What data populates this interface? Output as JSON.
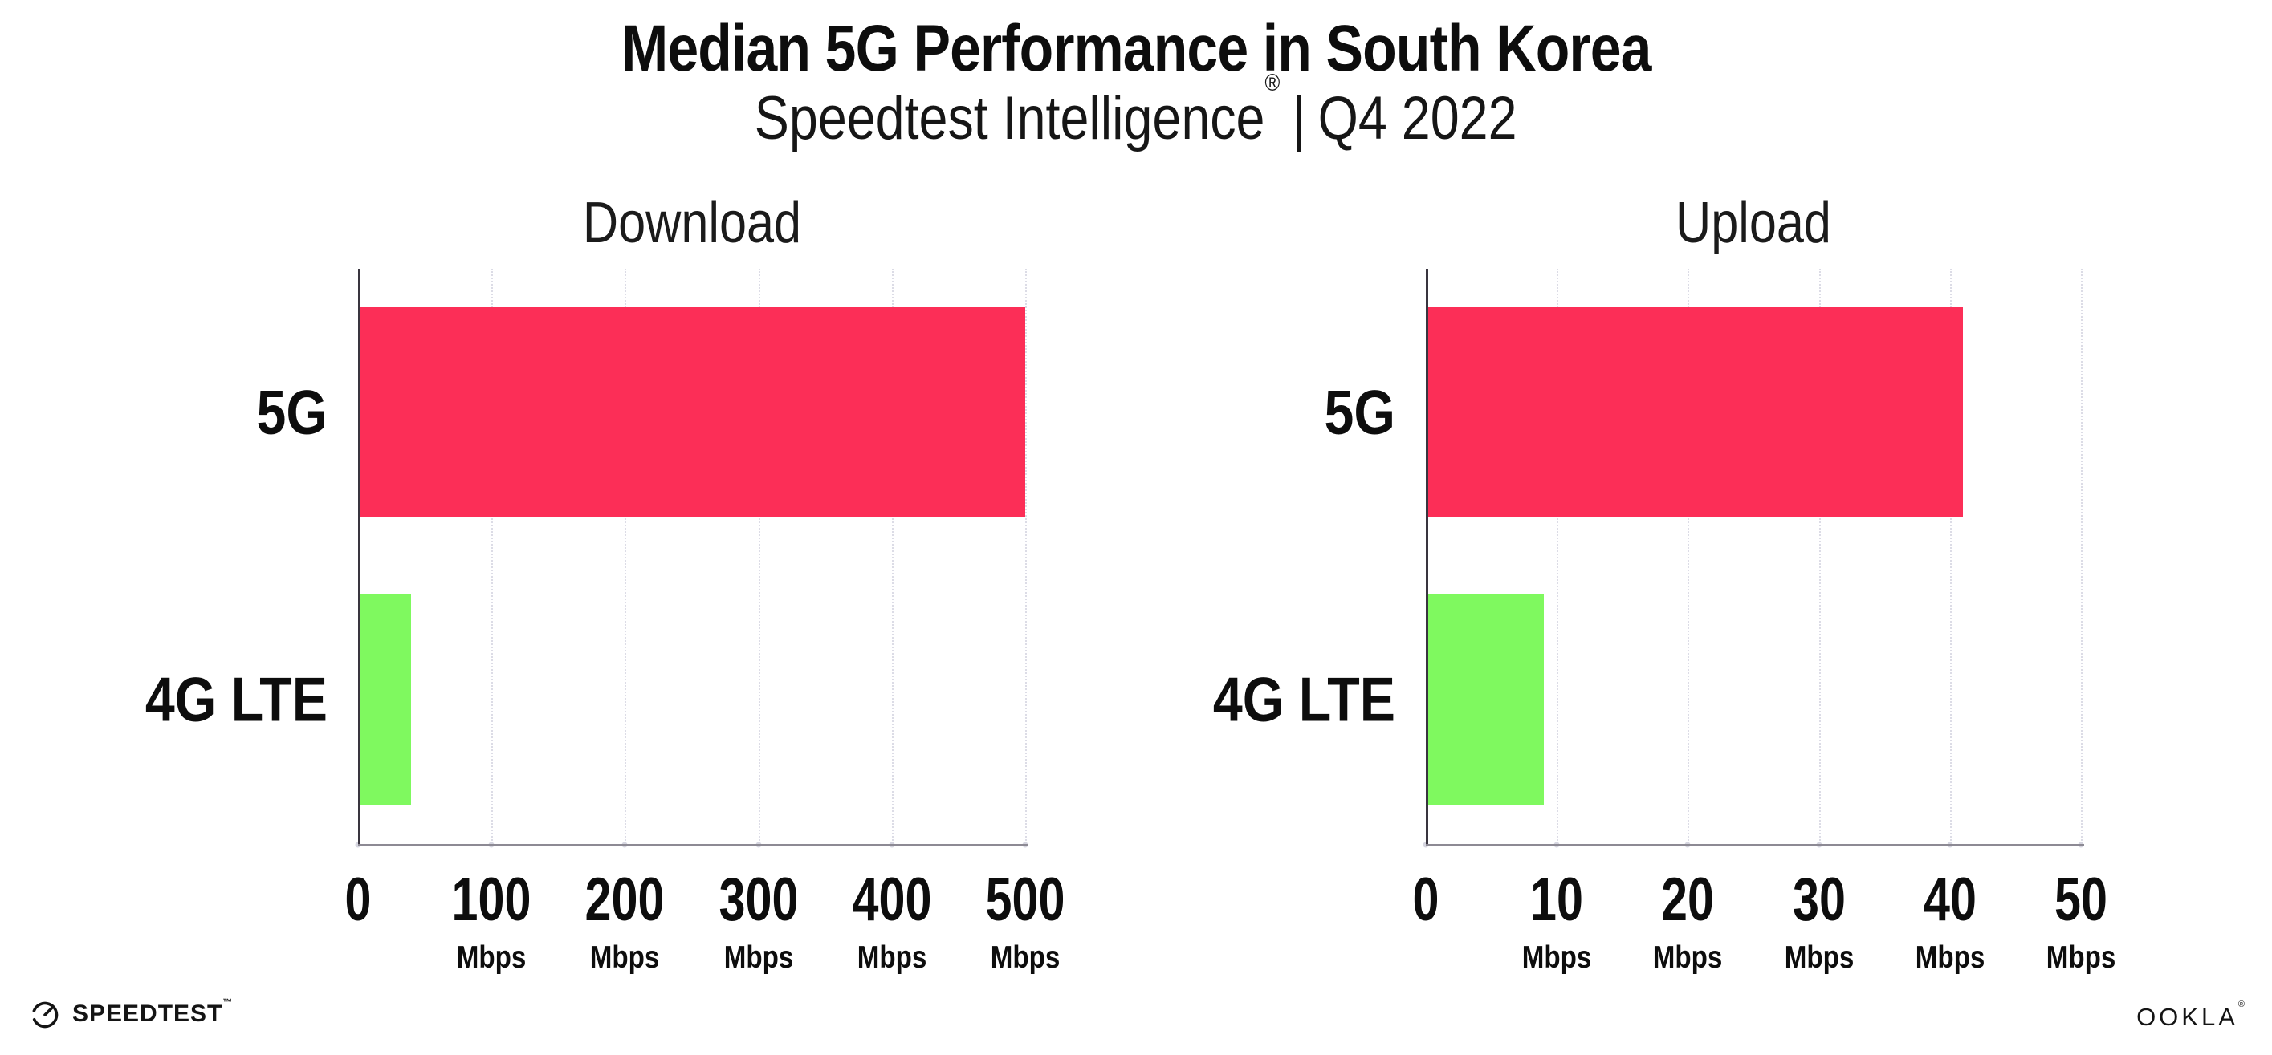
{
  "header": {
    "title": "Median 5G Performance in South Korea",
    "subtitle_brand": "Speedtest Intelligence",
    "subtitle_registered": "®",
    "subtitle_separator": "|",
    "subtitle_period": "Q4 2022"
  },
  "footer": {
    "speedtest_logo_text": "SPEEDTEST",
    "speedtest_trademark": "™",
    "ookla_logo_text": "OOKLA",
    "ookla_registered": "®"
  },
  "colors": {
    "bar_5g": "#FC2E57",
    "bar_4g_lte": "#7FF95F",
    "gridline": "#DCDCE6",
    "y_axis": "#39353F",
    "x_axis": "#8D8A94",
    "tick_dot": "#D6D6E0",
    "text": "#111111"
  },
  "chart_data": [
    {
      "type": "bar",
      "orientation": "horizontal",
      "title": "Download",
      "categories": [
        "5G",
        "4G LTE"
      ],
      "values": [
        500,
        40
      ],
      "unit": "Mbps",
      "xlabel": "",
      "ylabel": "",
      "xlim": [
        0,
        500
      ],
      "xticks": [
        0,
        100,
        200,
        300,
        400,
        500
      ],
      "bar_colors": [
        "#FC2E57",
        "#7FF95F"
      ],
      "grid": "vertical-dotted",
      "legend": "none"
    },
    {
      "type": "bar",
      "orientation": "horizontal",
      "title": "Upload",
      "categories": [
        "5G",
        "4G LTE"
      ],
      "values": [
        41,
        9
      ],
      "unit": "Mbps",
      "xlabel": "",
      "ylabel": "",
      "xlim": [
        0,
        50
      ],
      "xticks": [
        0,
        10,
        20,
        30,
        40,
        50
      ],
      "bar_colors": [
        "#FC2E57",
        "#7FF95F"
      ],
      "grid": "vertical-dotted",
      "legend": "none"
    }
  ]
}
